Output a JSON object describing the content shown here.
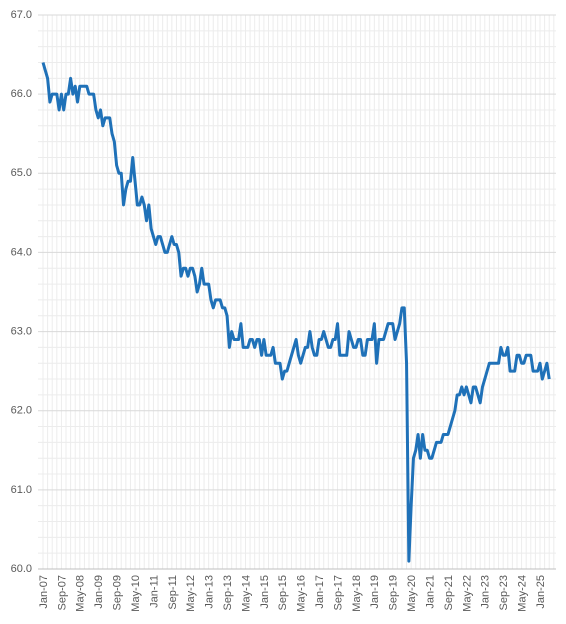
{
  "chart_data": {
    "type": "line",
    "categories": [
      "Jan-07",
      null,
      null,
      null,
      null,
      null,
      null,
      null,
      "Sep-07",
      null,
      null,
      null,
      null,
      null,
      null,
      null,
      "May-08",
      null,
      null,
      null,
      null,
      null,
      null,
      null,
      "Jan-09",
      null,
      null,
      null,
      null,
      null,
      null,
      null,
      "Sep-09",
      null,
      null,
      null,
      null,
      null,
      null,
      null,
      "May-10",
      null,
      null,
      null,
      null,
      null,
      null,
      null,
      "Jan-11",
      null,
      null,
      null,
      null,
      null,
      null,
      null,
      "Sep-11",
      null,
      null,
      null,
      null,
      null,
      null,
      null,
      "May-12",
      null,
      null,
      null,
      null,
      null,
      null,
      null,
      "Jan-13",
      null,
      null,
      null,
      null,
      null,
      null,
      null,
      "Sep-13",
      null,
      null,
      null,
      null,
      null,
      null,
      null,
      "May-14",
      null,
      null,
      null,
      null,
      null,
      null,
      null,
      "Jan-15",
      null,
      null,
      null,
      null,
      null,
      null,
      null,
      "Sep-15",
      null,
      null,
      null,
      null,
      null,
      null,
      null,
      "May-16",
      null,
      null,
      null,
      null,
      null,
      null,
      null,
      "Jan-17",
      null,
      null,
      null,
      null,
      null,
      null,
      null,
      "Sep-17",
      null,
      null,
      null,
      null,
      null,
      null,
      null,
      "May-18",
      null,
      null,
      null,
      null,
      null,
      null,
      null,
      "Jan-19",
      null,
      null,
      null,
      null,
      null,
      null,
      null,
      "Sep-19",
      null,
      null,
      null,
      null,
      null,
      null,
      null,
      "May-20",
      null,
      null,
      null,
      null,
      null,
      null,
      null,
      "Jan-21",
      null,
      null,
      null,
      null,
      null,
      null,
      null,
      "Sep-21",
      null,
      null,
      null,
      null,
      null,
      null,
      null,
      "May-22",
      null,
      null,
      null,
      null,
      null,
      null,
      null,
      "Jan-23",
      null,
      null,
      null,
      null,
      null,
      null,
      null,
      "Sep-23",
      null,
      null,
      null,
      null,
      null,
      null,
      null,
      "May-24",
      null,
      null,
      null,
      null,
      null,
      null,
      null,
      "Jan-25",
      null,
      null,
      null,
      null
    ],
    "values": [
      66.4,
      66.3,
      66.2,
      65.9,
      66.0,
      66.0,
      66.0,
      65.8,
      66.0,
      65.8,
      66.0,
      66.0,
      66.2,
      66.0,
      66.1,
      65.9,
      66.1,
      66.1,
      66.1,
      66.1,
      66.0,
      66.0,
      66.0,
      65.8,
      65.7,
      65.8,
      65.6,
      65.7,
      65.7,
      65.7,
      65.5,
      65.4,
      65.1,
      65.0,
      65.0,
      64.6,
      64.8,
      64.9,
      64.9,
      65.2,
      64.9,
      64.6,
      64.6,
      64.7,
      64.6,
      64.4,
      64.6,
      64.3,
      64.2,
      64.1,
      64.2,
      64.2,
      64.1,
      64.0,
      64.0,
      64.1,
      64.2,
      64.1,
      64.1,
      64.0,
      63.7,
      63.8,
      63.8,
      63.7,
      63.8,
      63.8,
      63.7,
      63.5,
      63.6,
      63.8,
      63.6,
      63.6,
      63.6,
      63.4,
      63.3,
      63.4,
      63.4,
      63.4,
      63.3,
      63.3,
      63.2,
      62.8,
      63.0,
      62.9,
      62.9,
      62.9,
      63.1,
      62.8,
      62.8,
      62.8,
      62.9,
      62.9,
      62.8,
      62.9,
      62.9,
      62.7,
      62.9,
      62.7,
      62.7,
      62.7,
      62.8,
      62.6,
      62.6,
      62.6,
      62.4,
      62.5,
      62.5,
      62.6,
      62.7,
      62.8,
      62.9,
      62.7,
      62.6,
      62.7,
      62.8,
      62.8,
      63.0,
      62.8,
      62.7,
      62.7,
      62.9,
      62.9,
      63.0,
      62.9,
      62.8,
      62.8,
      62.9,
      62.9,
      63.1,
      62.7,
      62.7,
      62.7,
      62.7,
      63.0,
      62.9,
      62.8,
      62.8,
      62.9,
      62.9,
      62.7,
      62.7,
      62.9,
      62.9,
      62.9,
      63.1,
      62.6,
      62.9,
      62.9,
      62.9,
      63.0,
      63.1,
      63.1,
      63.1,
      62.9,
      63.0,
      63.1,
      63.3,
      63.3,
      62.6,
      60.1,
      60.8,
      61.4,
      61.5,
      61.7,
      61.4,
      61.7,
      61.5,
      61.5,
      61.4,
      61.4,
      61.5,
      61.6,
      61.6,
      61.6,
      61.7,
      61.7,
      61.7,
      61.8,
      61.9,
      62.0,
      62.2,
      62.2,
      62.3,
      62.2,
      62.3,
      62.2,
      62.1,
      62.3,
      62.3,
      62.2,
      62.1,
      62.3,
      62.4,
      62.5,
      62.6,
      62.6,
      62.6,
      62.6,
      62.6,
      62.8,
      62.7,
      62.7,
      62.8,
      62.5,
      62.5,
      62.5,
      62.7,
      62.7,
      62.6,
      62.6,
      62.7,
      62.7,
      62.7,
      62.5,
      62.5,
      62.5,
      62.6,
      62.4,
      62.5,
      62.6,
      62.4
    ],
    "color": "#1f71b8",
    "ylim": [
      60,
      67
    ],
    "yticks": [
      {
        "value": 60,
        "label": "60.0"
      },
      {
        "value": 61,
        "label": "61.0"
      },
      {
        "value": 62,
        "label": "62.0"
      },
      {
        "value": 63,
        "label": "63.0"
      },
      {
        "value": 64,
        "label": "64.0"
      },
      {
        "value": 65,
        "label": "65.0"
      },
      {
        "value": 66,
        "label": "66.0"
      },
      {
        "value": 67,
        "label": "67.0"
      }
    ],
    "grid": true
  }
}
